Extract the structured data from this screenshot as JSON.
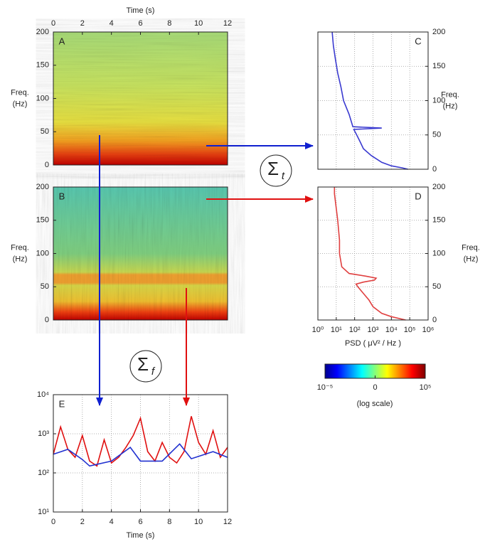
{
  "chart_data": [
    {
      "type": "heatmap",
      "label": "A",
      "xlabel": "Time (s)",
      "ylabel": [
        "Freq.",
        "(Hz)"
      ],
      "xlim": [
        0,
        12
      ],
      "xticks": [
        0,
        2,
        4,
        6,
        8,
        10,
        12
      ],
      "ylim": [
        0,
        200
      ],
      "yticks": [
        0,
        50,
        100,
        150,
        200
      ]
    },
    {
      "type": "heatmap",
      "label": "B",
      "ylabel": [
        "Freq.",
        "(Hz)"
      ],
      "xlim": [
        0,
        12
      ],
      "ylim": [
        0,
        200
      ],
      "yticks": [
        0,
        50,
        100,
        150,
        200
      ]
    },
    {
      "type": "line",
      "label": "C",
      "ylabel": [
        "Freq.",
        "(Hz)"
      ],
      "log_x": true,
      "grid": true,
      "xlim": [
        1,
        1000000
      ],
      "xgrid": [
        10,
        100,
        1000,
        10000,
        100000
      ],
      "ylim": [
        0,
        200
      ],
      "yticks": [
        0,
        50,
        100,
        150,
        200
      ],
      "series": [
        {
          "color": "#3a3ad0",
          "x": [
            6,
            7,
            9,
            12,
            18,
            25,
            50,
            80,
            3000,
            90,
            130,
            200,
            300,
            800,
            3000,
            10000,
            40000,
            80000
          ],
          "values": [
            200,
            180,
            160,
            140,
            120,
            100,
            80,
            62,
            60,
            58,
            50,
            40,
            30,
            20,
            10,
            5,
            2,
            0
          ]
        }
      ]
    },
    {
      "type": "line",
      "label": "D",
      "ylabel": [
        "Freq.",
        "(Hz)"
      ],
      "xlabel": "PSD ( μV² / Hz )",
      "log_x": true,
      "grid": true,
      "xlim": [
        1,
        1000000
      ],
      "xticks": [
        {
          "value": 1,
          "label": "10⁰"
        },
        {
          "value": 10,
          "label": "10¹"
        },
        {
          "value": 100,
          "label": "10²"
        },
        {
          "value": 1000,
          "label": "10³"
        },
        {
          "value": 10000,
          "label": "10⁴"
        },
        {
          "value": 100000,
          "label": "10⁵"
        },
        {
          "value": 1000000,
          "label": "10⁶"
        }
      ],
      "ylim": [
        0,
        200
      ],
      "yticks": [
        0,
        50,
        100,
        150,
        200
      ],
      "series": [
        {
          "color": "#e04040",
          "x": [
            8,
            8,
            12,
            15,
            15,
            20,
            50,
            400,
            1500,
            1200,
            300,
            120,
            150,
            300,
            600,
            1000,
            3000,
            10000,
            60000
          ],
          "values": [
            200,
            190,
            150,
            120,
            100,
            80,
            70,
            66,
            63,
            60,
            57,
            54,
            50,
            40,
            30,
            20,
            10,
            5,
            0
          ]
        }
      ]
    },
    {
      "type": "line",
      "label": "E",
      "xlabel": "Time (s)",
      "log_y": true,
      "grid": true,
      "xlim": [
        0,
        12
      ],
      "xticks": [
        0,
        2,
        4,
        6,
        8,
        10,
        12
      ],
      "ylim": [
        10,
        10000
      ],
      "yticks": [
        {
          "value": 10,
          "label": "10¹"
        },
        {
          "value": 100,
          "label": "10²"
        },
        {
          "value": 1000,
          "label": "10³"
        },
        {
          "value": 10000,
          "label": "10⁴"
        }
      ],
      "series": [
        {
          "color": "#e01010",
          "x": [
            0,
            0.5,
            1,
            1.5,
            2,
            2.5,
            3,
            3.5,
            4,
            4.5,
            5,
            5.5,
            6,
            6.5,
            7,
            7.5,
            8,
            8.5,
            9,
            9.5,
            10,
            10.5,
            11,
            11.5,
            12
          ],
          "values": [
            300,
            1500,
            400,
            250,
            900,
            200,
            150,
            700,
            180,
            250,
            450,
            900,
            2500,
            350,
            200,
            600,
            250,
            180,
            350,
            2800,
            600,
            300,
            1200,
            250,
            450
          ]
        },
        {
          "color": "#2030d0",
          "x": [
            0,
            1,
            2,
            2.5,
            4,
            5.3,
            6,
            7.5,
            8.7,
            9.5,
            11,
            12
          ],
          "values": [
            300,
            400,
            220,
            150,
            200,
            450,
            200,
            200,
            550,
            230,
            350,
            250
          ]
        }
      ]
    }
  ],
  "colorbar": {
    "lim": [
      -5,
      5
    ],
    "ticks": [
      {
        "value": -5,
        "label": "10⁻⁵"
      },
      {
        "value": 0,
        "label": "0"
      },
      {
        "value": 5,
        "label": "10⁵"
      }
    ],
    "label": "(log scale)"
  },
  "annotations": [
    {
      "text": "Σ",
      "sub": "t"
    },
    {
      "text": "Σ",
      "sub": "f"
    }
  ]
}
